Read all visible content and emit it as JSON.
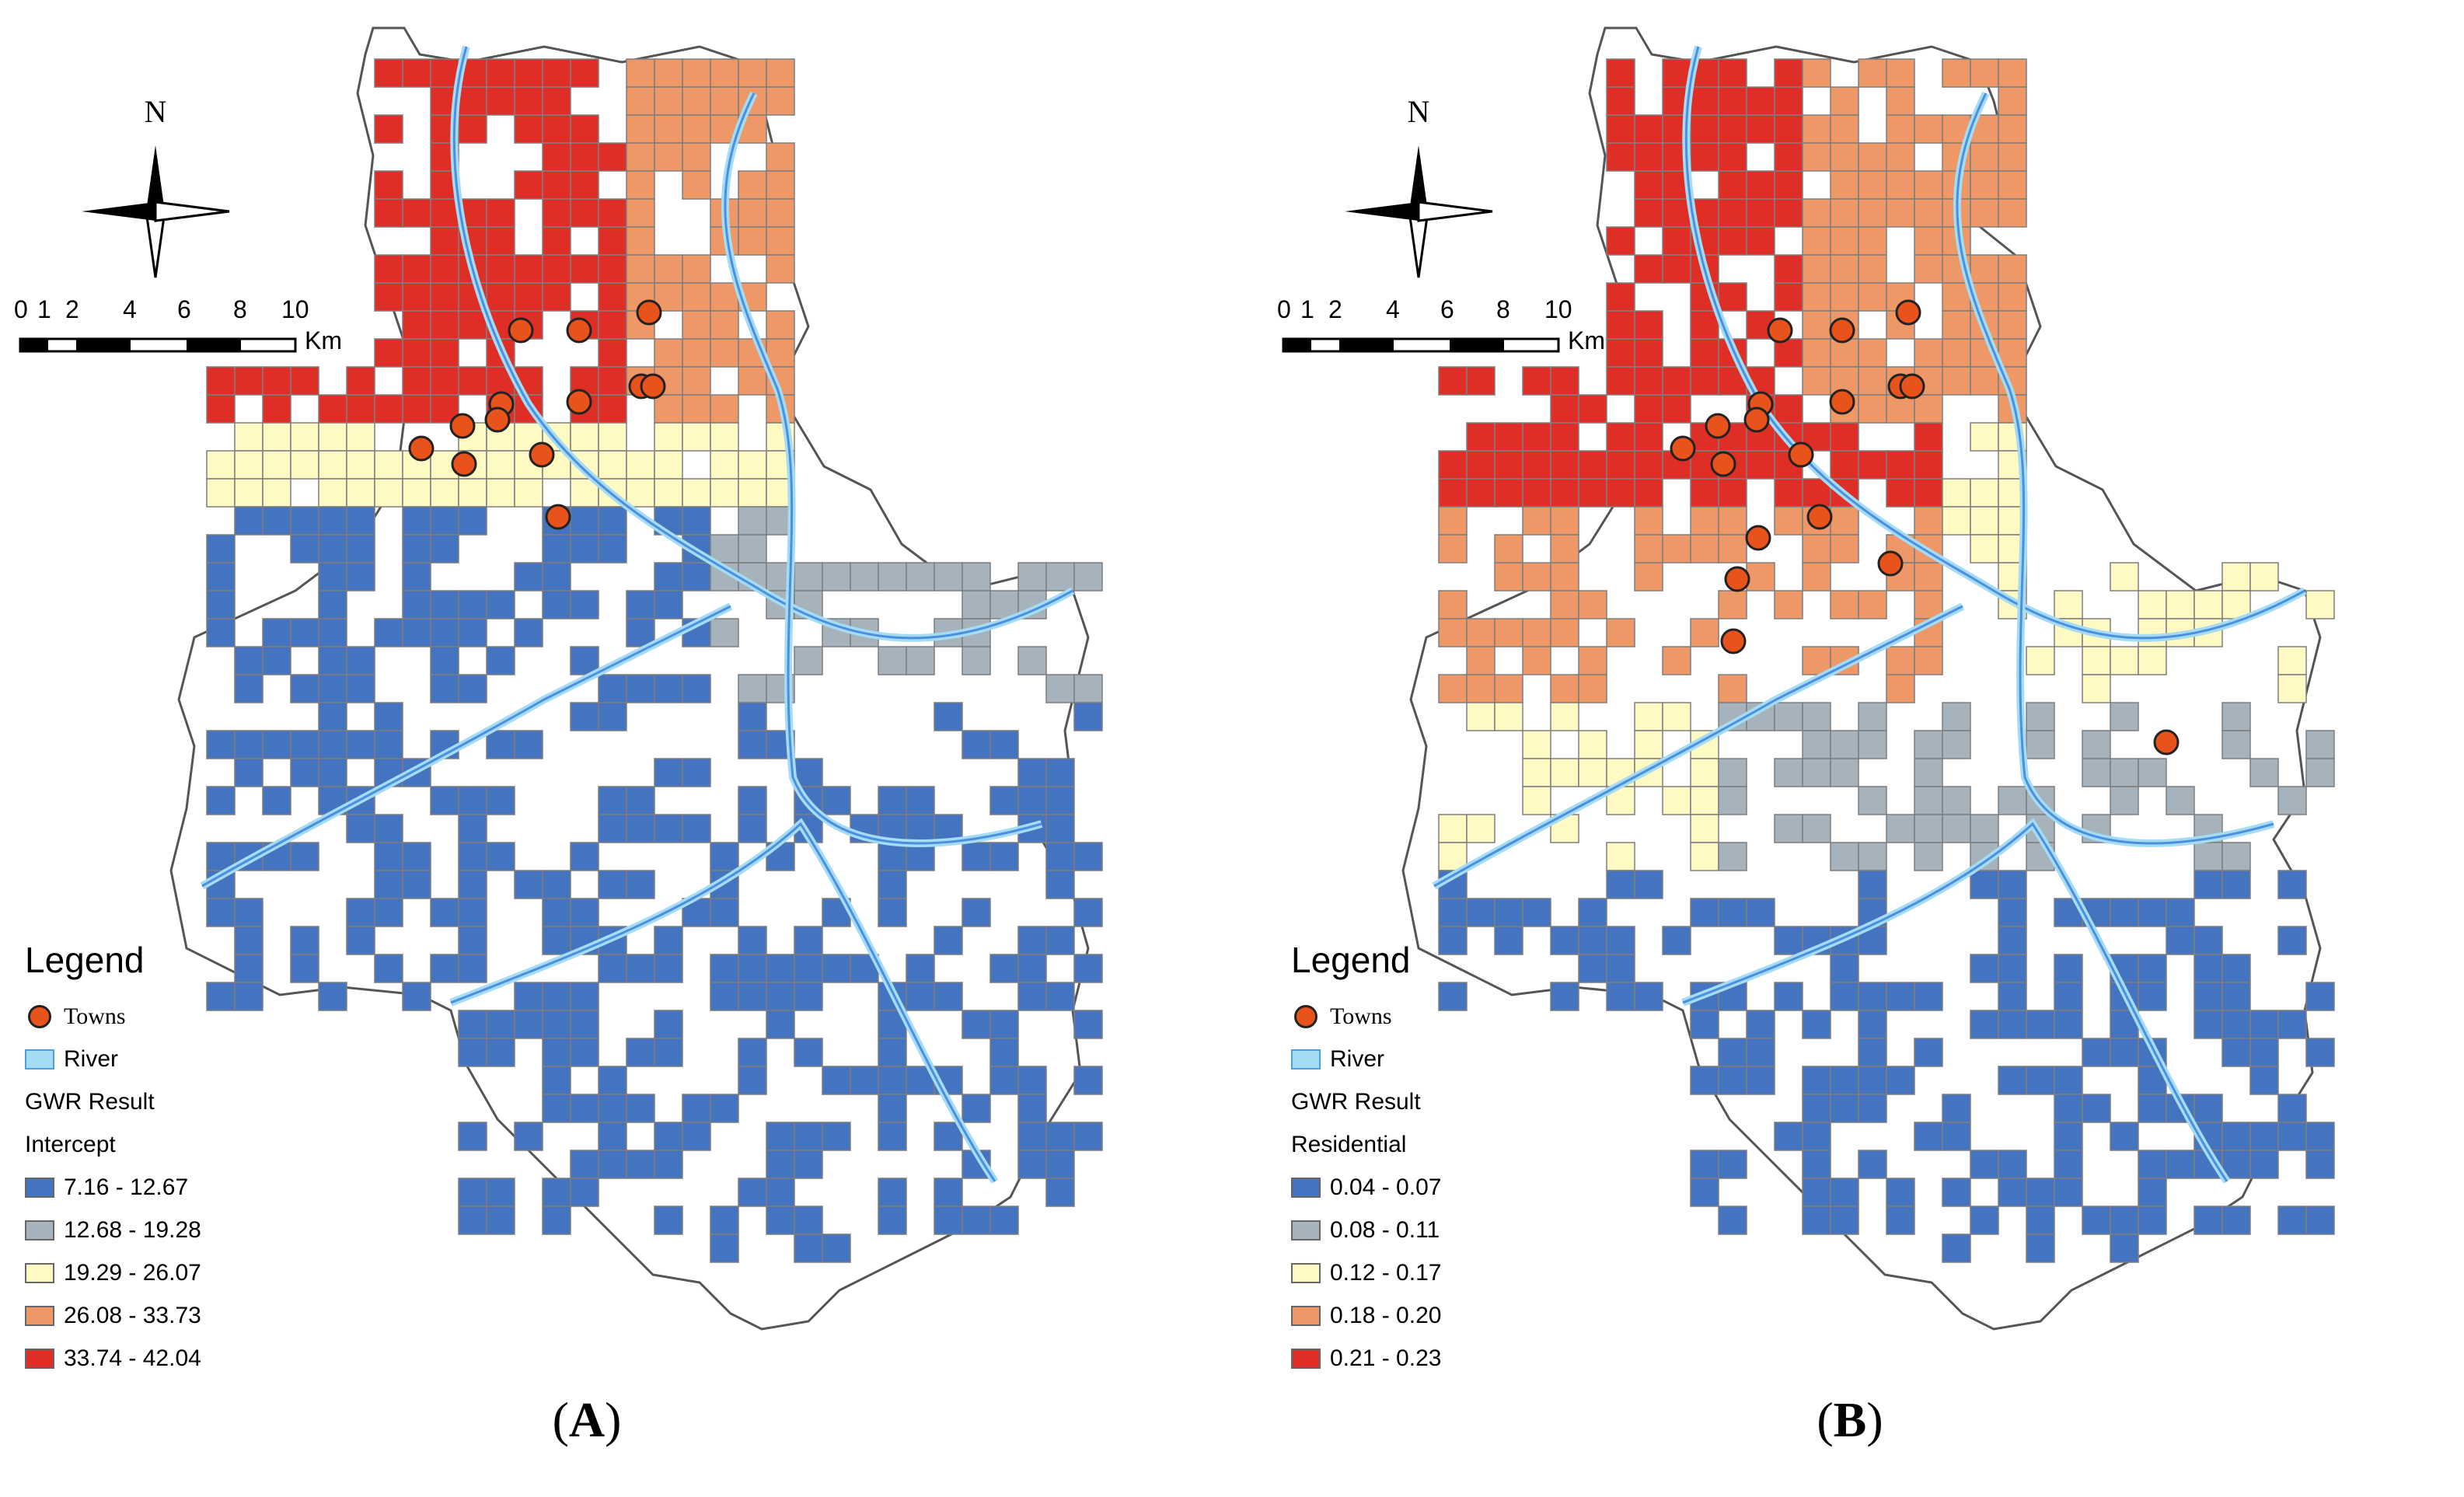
{
  "panels": [
    {
      "id": "A",
      "panel_label_open": "(",
      "panel_label_letter": "A",
      "panel_label_close": ")",
      "north_label": "N",
      "scale": {
        "ticks": [
          "0",
          "1",
          "2",
          "4",
          "6",
          "8",
          "10"
        ],
        "unit": "Km"
      },
      "legend": {
        "title": "Legend",
        "towns_label": "Towns",
        "river_label": "River",
        "gwr_label": "GWR Result",
        "variable": "Intercept",
        "classes": [
          {
            "label": "7.16 - 12.67",
            "color": "#4473C0"
          },
          {
            "label": "12.68 - 19.28",
            "color": "#A6B2BC"
          },
          {
            "label": "19.29 - 26.07",
            "color": "#FFF9C4"
          },
          {
            "label": "26.08 - 33.73",
            "color": "#EE9867"
          },
          {
            "label": "33.74 - 42.04",
            "color": "#DE2E26"
          }
        ]
      }
    },
    {
      "id": "B",
      "panel_label_open": "(",
      "panel_label_letter": "B",
      "panel_label_close": ")",
      "north_label": "N",
      "scale": {
        "ticks": [
          "0",
          "1",
          "2",
          "4",
          "6",
          "8",
          "10"
        ],
        "unit": "Km"
      },
      "legend": {
        "title": "Legend",
        "towns_label": "Towns",
        "river_label": "River",
        "gwr_label": "GWR Result",
        "variable": "Residential",
        "classes": [
          {
            "label": "0.04 - 0.07",
            "color": "#4473C0"
          },
          {
            "label": "0.08 - 0.11",
            "color": "#A6B2BC"
          },
          {
            "label": "0.12 - 0.17",
            "color": "#FFF9C4"
          },
          {
            "label": "0.18 - 0.20",
            "color": "#EE9867"
          },
          {
            "label": "0.21 - 0.23",
            "color": "#DE2E26"
          }
        ]
      }
    }
  ],
  "colors": {
    "boundary": "#555555",
    "river_line": "#4C8FE0",
    "river_fill": "#A4DCF3",
    "town_fill": "#E8531C",
    "grid_stroke": "#7E7E7E"
  }
}
